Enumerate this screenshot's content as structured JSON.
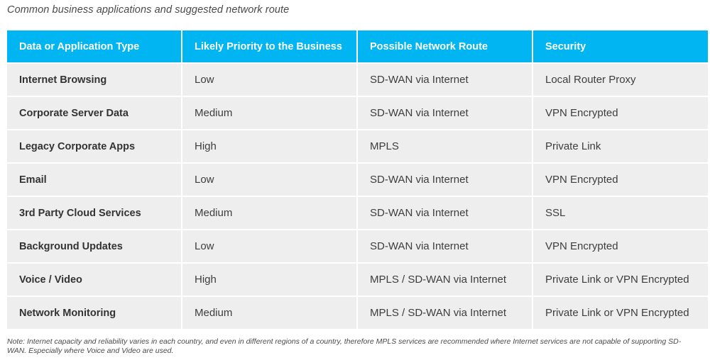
{
  "caption": "Common business applications and suggested network route",
  "table": {
    "headers": [
      "Data or Application Type",
      "Likely Priority to the Business",
      "Possible Network Route",
      "Security"
    ],
    "rows": [
      [
        "Internet Browsing",
        "Low",
        "SD-WAN via Internet",
        "Local Router Proxy"
      ],
      [
        "Corporate Server Data",
        "Medium",
        "SD-WAN via Internet",
        "VPN Encrypted"
      ],
      [
        "Legacy Corporate Apps",
        "High",
        "MPLS",
        "Private Link"
      ],
      [
        "Email",
        "Low",
        "SD-WAN via Internet",
        "VPN Encrypted"
      ],
      [
        "3rd Party Cloud Services",
        "Medium",
        "SD-WAN via Internet",
        "SSL"
      ],
      [
        "Background Updates",
        "Low",
        "SD-WAN via Internet",
        "VPN Encrypted"
      ],
      [
        "Voice / Video",
        "High",
        "MPLS / SD-WAN via Internet",
        "Private Link or VPN Encrypted"
      ],
      [
        "Network Monitoring",
        "Medium",
        "MPLS / SD-WAN via Internet",
        "Private Link or VPN Encrypted"
      ]
    ]
  },
  "note": "Note: Internet capacity and reliability varies in each country, and even in different regions of a country, therefore MPLS services are recommended where Internet services are not capable of supporting SD-WAN. Especially where Voice and Video are used.",
  "colors": {
    "header_bg": "#00b5f1",
    "header_text": "#ffffff",
    "cell_bg": "#eeeeef",
    "body_text": "#3d3d3d"
  }
}
